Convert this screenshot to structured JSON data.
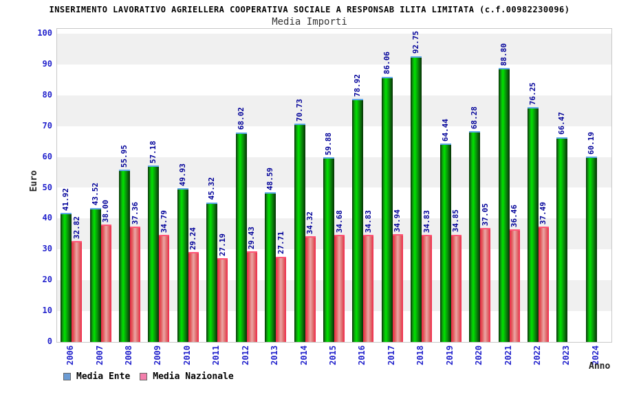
{
  "header": {
    "title": "INSERIMENTO LAVORATIVO AGRIELLERA COOPERATIVA SOCIALE A RESPONSAB ILITA LIMITATA (c.f.00982230096)",
    "subtitle": "Media Importi"
  },
  "chart_data": {
    "type": "bar",
    "title": "Media Importi",
    "xlabel": "Anno",
    "ylabel": "Euro",
    "ylim": [
      0,
      100
    ],
    "yticks": [
      0,
      10,
      20,
      30,
      40,
      50,
      60,
      70,
      80,
      90,
      100
    ],
    "grid": "alternating-horizontal-bands",
    "legend_position": "bottom-left",
    "value_label_format": "2-decimals-rotated-90",
    "categories": [
      "2006",
      "2007",
      "2008",
      "2009",
      "2010",
      "2011",
      "2012",
      "2013",
      "2014",
      "2015",
      "2016",
      "2017",
      "2018",
      "2019",
      "2020",
      "2021",
      "2022",
      "2023",
      "2024"
    ],
    "series": [
      {
        "name": "Media Ente",
        "legend_color": "#6C9CD4",
        "values": [
          41.92,
          43.52,
          55.95,
          57.18,
          49.93,
          45.32,
          68.02,
          48.59,
          70.73,
          59.88,
          78.92,
          86.06,
          92.75,
          64.44,
          68.28,
          88.8,
          76.25,
          66.47,
          60.19
        ]
      },
      {
        "name": "Media Nazionale",
        "legend_color": "#F47FAC",
        "values": [
          32.82,
          38.0,
          37.36,
          34.79,
          29.24,
          27.19,
          29.43,
          27.71,
          34.32,
          34.68,
          34.83,
          34.94,
          34.83,
          34.85,
          37.05,
          36.46,
          37.49,
          null,
          null
        ]
      }
    ]
  },
  "colors": {
    "axis_tick_label": "#2222CC",
    "value_label": "#000099",
    "band_gray": "#F0F0F0",
    "plot_border": "#C8C8C8",
    "axis_title": "#222222",
    "green_bar_cap": "#5FA8E8",
    "green_bar_edge": "#053005",
    "green_bar_bright": "#00E300",
    "red_bar_cap": "#FF5577",
    "red_bar_edge": "#F5254B",
    "red_bar_light": "#ECA5A5"
  }
}
